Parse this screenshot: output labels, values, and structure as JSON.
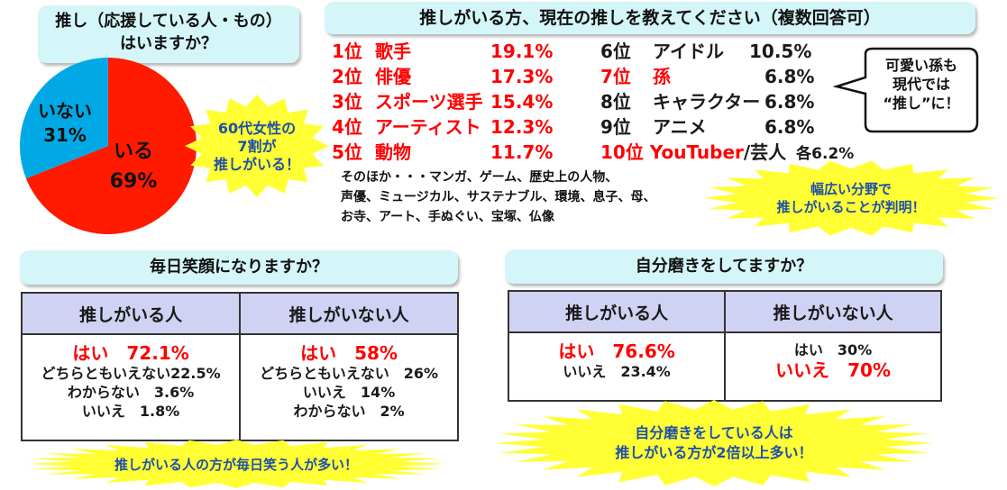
{
  "section1": {
    "title_line1": "推し（応援している人・もの）",
    "title_line2": "はいますか？"
  },
  "chart_data": {
    "type": "pie",
    "categories": [
      "いる",
      "いない"
    ],
    "values": [
      69,
      31
    ],
    "colors": [
      "#ff1a00",
      "#00a9e6"
    ],
    "labels": [
      {
        "name": "いる",
        "pct": "69%"
      },
      {
        "name": "いない",
        "pct": "31%"
      }
    ]
  },
  "starburst1": {
    "line1": "60代女性の",
    "line2": "7割が",
    "line3": "推しがいる！"
  },
  "section2": {
    "title": "推しがいる方、現在の推しを教えてください（複数回答可）",
    "ranks_left": [
      {
        "rank": "1位",
        "name": "歌手",
        "pct": "19.1%"
      },
      {
        "rank": "2位",
        "name": "俳優",
        "pct": "17.3%"
      },
      {
        "rank": "3位",
        "name": "スポーツ選手",
        "pct": "15.4%"
      },
      {
        "rank": "4位",
        "name": "アーティスト",
        "pct": "12.3%"
      },
      {
        "rank": "5位",
        "name": "動物",
        "pct": "11.7%"
      }
    ],
    "ranks_right": [
      {
        "rank": "6位",
        "name": "アイドル",
        "pct": "10.5%"
      },
      {
        "rank": "7位",
        "name": "孫",
        "pct": "6.8%"
      },
      {
        "rank": "8位",
        "name": "キャラクター",
        "pct": "6.8%"
      },
      {
        "rank": "9位",
        "name": "アニメ",
        "pct": "6.8%"
      }
    ],
    "rank10": {
      "rank": "10位",
      "name_red": "YouTuber",
      "name_dark": "/芸人",
      "pct": "各6.2%"
    },
    "others_line1": "そのほか・・・マンガ、ゲーム、歴史上の人物、",
    "others_line2": "声優、ミュージカル、サステナブル、環境、息子、母、",
    "others_line3": "お寺、アート、手ぬぐい、宝塚、仏像",
    "bubble_line1": "可愛い孫も",
    "bubble_line2": "現代では",
    "bubble_line3": "“推し”に！",
    "starburst_line1": "幅広い分野で",
    "starburst_line2": "推しがいることが判明！"
  },
  "section3": {
    "title": "毎日笑顔になりますか？",
    "col1_header": "推しがいる人",
    "col2_header": "推しがいない人",
    "col1_lines": [
      "はい　72.1%",
      "どちらともいえない22.5%",
      "わからない　3.6%",
      "いいえ　1.8%"
    ],
    "col2_lines": [
      "はい　58%",
      "どちらともいえない　26%",
      "いいえ　14%",
      "わからない　2%"
    ],
    "starburst": "推しがいる人の方が毎日笑う人が多い！"
  },
  "section4": {
    "title": "自分磨きをしてますか？",
    "col1_header": "推しがいる人",
    "col2_header": "推しがいない人",
    "col1_lines": [
      "はい　76.6%",
      "いいえ　23.4%"
    ],
    "col2_lines": [
      "はい　30%",
      "いいえ　70%"
    ],
    "starburst_line1": "自分磨きをしている人は",
    "starburst_line2": "推しがいる方が2倍以上多い！"
  }
}
